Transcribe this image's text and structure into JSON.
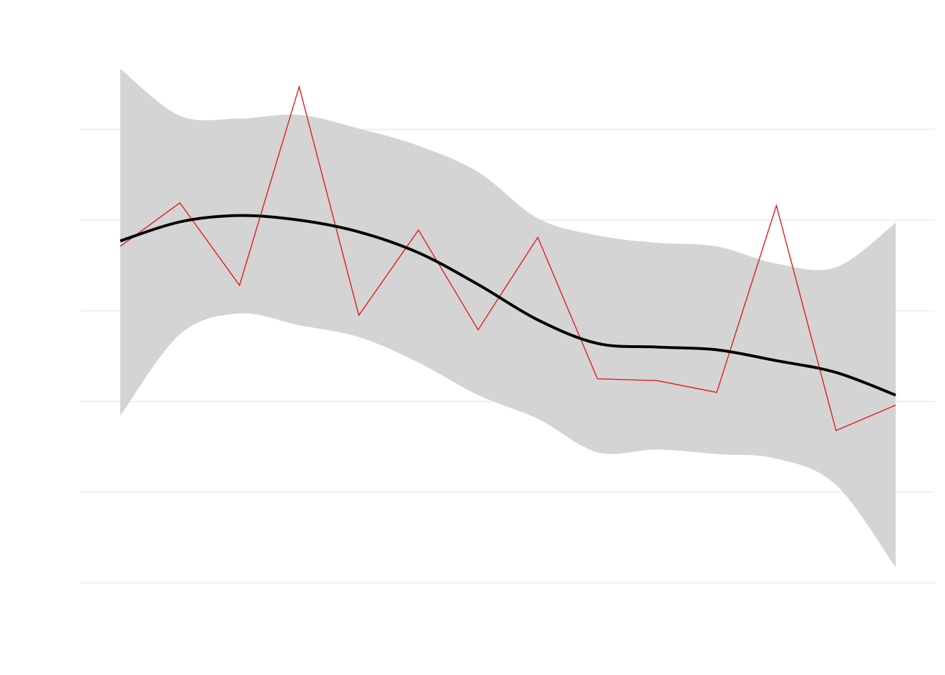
{
  "chart_data": {
    "type": "line",
    "x": [
      1,
      2,
      3,
      4,
      5,
      6,
      7,
      8,
      9,
      10,
      11,
      12,
      13,
      14
    ],
    "values": [
      3.71,
      4.19,
      3.28,
      5.47,
      2.95,
      3.89,
      2.79,
      3.81,
      2.25,
      2.23,
      2.1,
      4.16,
      1.68,
      1.96
    ],
    "color": "#e31a1c",
    "smooth": {
      "values": [
        3.77,
        3.98,
        4.05,
        4.0,
        3.87,
        3.64,
        3.29,
        2.9,
        2.64,
        2.6,
        2.57,
        2.45,
        2.32,
        2.07
      ],
      "upper": [
        5.67,
        5.15,
        5.12,
        5.16,
        5.01,
        4.82,
        4.53,
        4.02,
        3.83,
        3.75,
        3.71,
        3.52,
        3.48,
        3.97
      ],
      "lower": [
        1.84,
        2.74,
        2.97,
        2.84,
        2.71,
        2.43,
        2.07,
        1.81,
        1.44,
        1.47,
        1.42,
        1.37,
        1.08,
        0.17
      ],
      "color": "#000000",
      "band_color": "#d4d4d4"
    },
    "xlim": [
      0.34,
      14.65
    ],
    "ylim": [
      -0.55,
      5.95
    ],
    "yticks": [
      0,
      1,
      2,
      3,
      4,
      5
    ],
    "grid": true
  }
}
